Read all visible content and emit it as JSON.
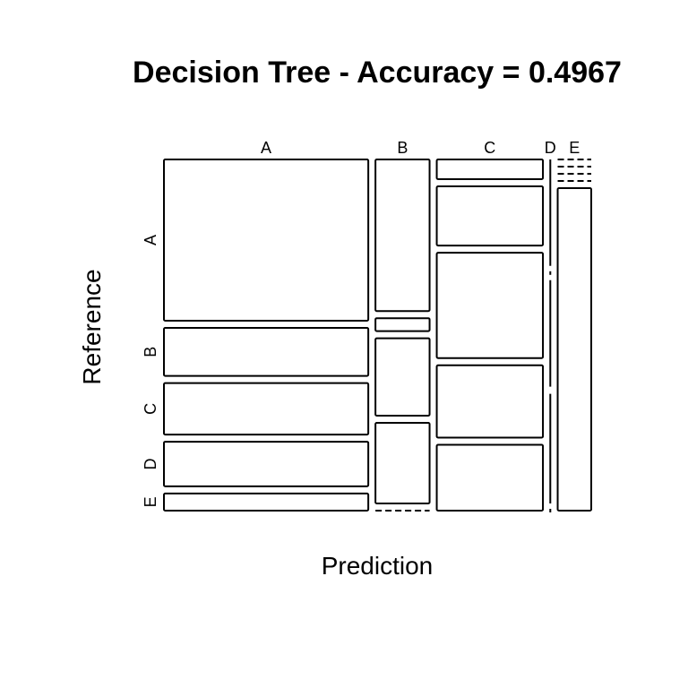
{
  "chart_data": {
    "type": "mosaic",
    "title": "Decision Tree - Accuracy = 0.4967",
    "xlabel": "Prediction",
    "ylabel": "Reference",
    "x_categories": [
      "A",
      "B",
      "C",
      "D",
      "E"
    ],
    "y_categories": [
      "A",
      "B",
      "C",
      "D",
      "E"
    ],
    "column_proportions": [
      0.487,
      0.129,
      0.253,
      0.001,
      0.08
    ],
    "cell_proportions": [
      [
        0.47,
        0.14,
        0.15,
        0.13,
        0.05
      ],
      [
        0.47,
        0.04,
        0.24,
        0.25,
        0.0
      ],
      [
        0.06,
        0.18,
        0.32,
        0.22,
        0.2
      ],
      [
        0.33,
        0.0,
        0.33,
        0.34,
        0.0
      ],
      [
        0.0,
        0.0,
        0.0,
        0.0,
        1.0
      ]
    ]
  }
}
